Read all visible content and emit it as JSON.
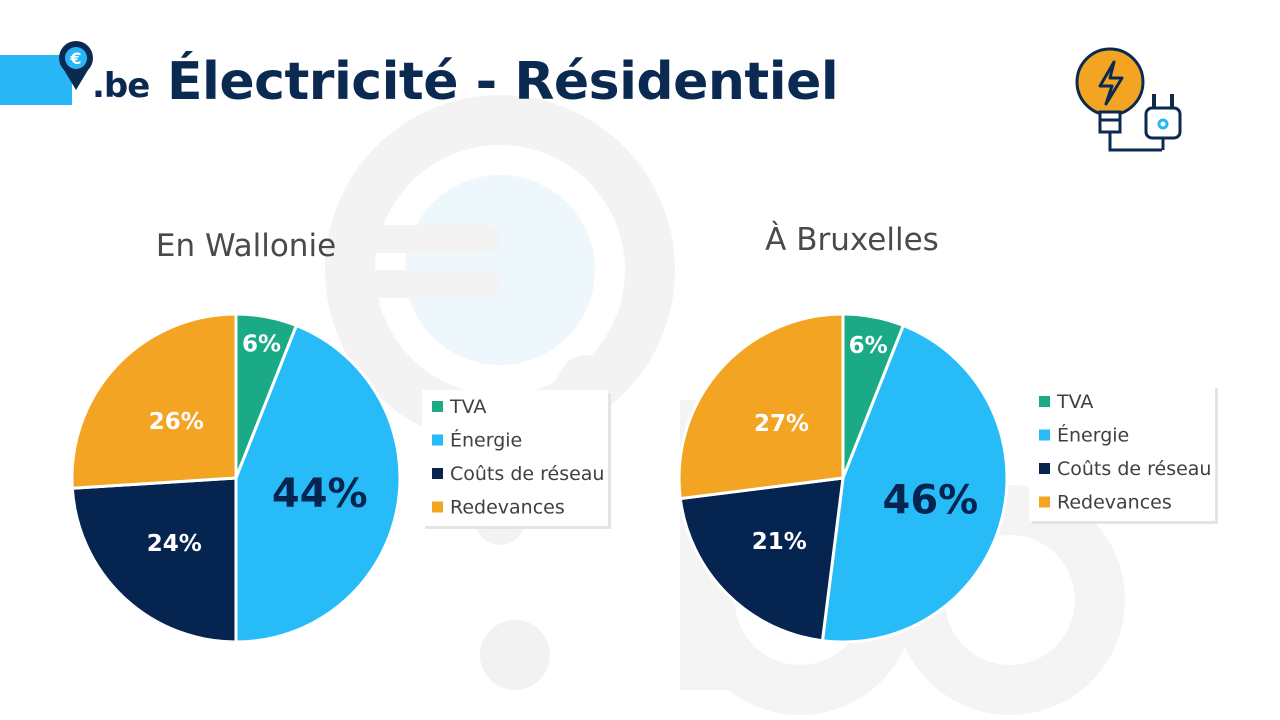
{
  "header": {
    "logo_text": ".be",
    "logo_symbol": "€",
    "title": "Électricité - Résidentiel",
    "icon": "lightbulb-plug-icon"
  },
  "colors": {
    "tva": "#1aaa86",
    "energie": "#27bcf8",
    "reseau": "#052550",
    "redevances": "#f2a422",
    "title": "#0b2a52",
    "accent": "#29b6f6"
  },
  "chart_data": [
    {
      "type": "pie",
      "title": "En Wallonie",
      "categories": [
        "TVA",
        "Énergie",
        "Coûts de réseau",
        "Redevances"
      ],
      "values": [
        6,
        44,
        24,
        26
      ],
      "labels": [
        "6%",
        "44%",
        "24%",
        "26%"
      ],
      "legend": "right"
    },
    {
      "type": "pie",
      "title": "À Bruxelles",
      "categories": [
        "TVA",
        "Énergie",
        "Coûts de réseau",
        "Redevances"
      ],
      "values": [
        6,
        46,
        21,
        27
      ],
      "labels": [
        "6%",
        "46%",
        "21%",
        "27%"
      ],
      "legend": "right"
    }
  ]
}
